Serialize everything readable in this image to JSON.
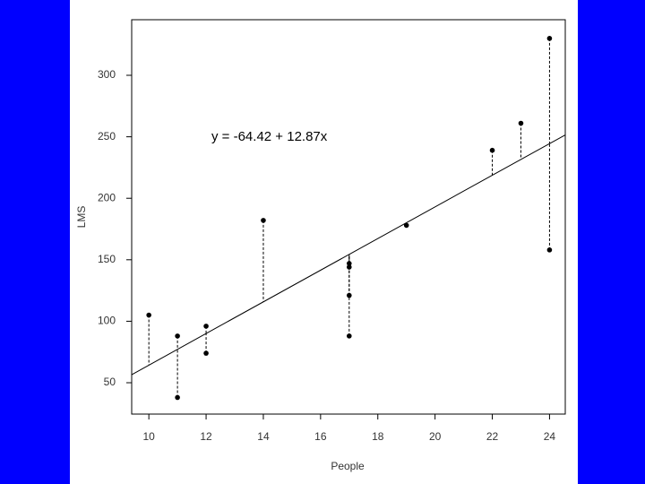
{
  "chart_data": {
    "type": "scatter",
    "x_label": "People",
    "y_label": "LMS",
    "annotation": "y = -64.42 + 12.87x",
    "fit": {
      "intercept": -64.42,
      "slope": 12.87
    },
    "x": [
      10,
      11,
      11,
      12,
      12,
      14,
      17,
      17,
      17,
      17,
      19,
      22,
      23,
      24,
      24
    ],
    "y": [
      105,
      88,
      38,
      96,
      74,
      182,
      147,
      144,
      121,
      88,
      178,
      239,
      261,
      330,
      158
    ],
    "color": "#000000",
    "xlim": [
      9.4,
      24.55
    ],
    "ylim": [
      24.5,
      345.2
    ],
    "xticks": [
      10,
      12,
      14,
      16,
      18,
      20,
      22,
      24
    ],
    "yticks": [
      50,
      100,
      150,
      200,
      250,
      300
    ]
  }
}
